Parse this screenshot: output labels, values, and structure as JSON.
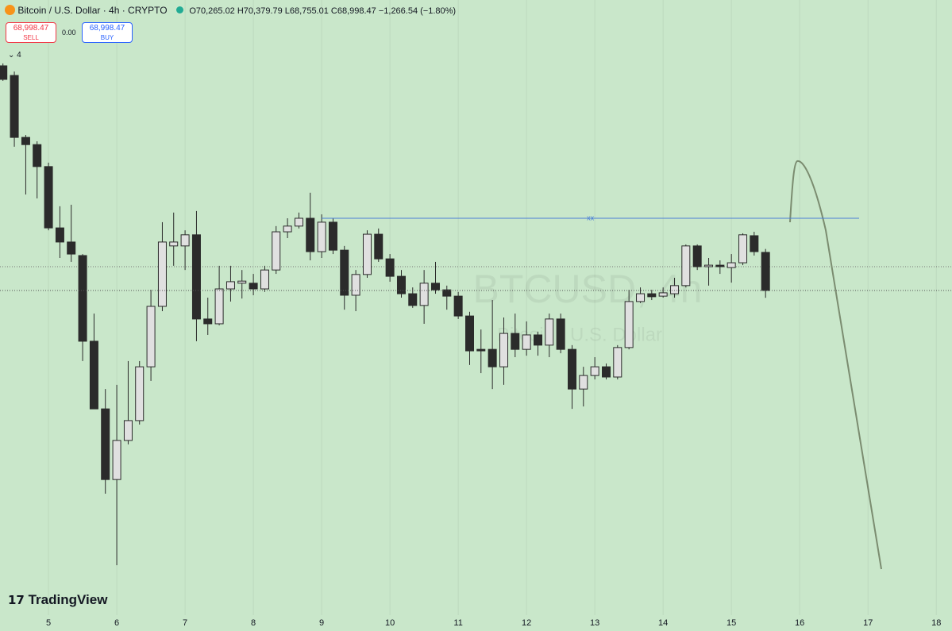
{
  "header": {
    "symbol": "Bitcoin / U.S. Dollar · 4h · CRYPTO",
    "ohlc": "O70,265.02 H70,379.79 L68,755.01 C68,998.47 −1,266.54 (−1.80%)",
    "sell_price": "68,998.47",
    "sell": "SELL",
    "spread": "0.00",
    "buy_price": "68,998.47",
    "buy": "BUY",
    "indicators": "4"
  },
  "watermark": {
    "ticker": "BTCUSD, 4h",
    "name": "Bitcoin / U.S. Dollar"
  },
  "logo": "TradingView",
  "chart_data": {
    "type": "candlestick",
    "x": [
      4.333,
      4.5,
      4.667,
      4.833,
      5,
      5.167,
      5.333,
      5.5,
      5.667,
      5.833,
      6,
      6.167,
      6.333,
      6.5,
      6.667,
      6.833,
      7,
      7.167,
      7.333,
      7.5,
      7.667,
      7.833,
      8,
      8.167,
      8.333,
      8.5,
      8.667,
      8.833,
      9,
      9.167,
      9.333,
      9.5,
      9.667,
      9.833,
      10,
      10.167,
      10.333,
      10.5,
      10.667,
      10.833,
      11,
      11.167,
      11.333,
      11.5,
      11.667,
      11.833,
      12,
      12.167,
      12.333,
      12.5,
      12.667,
      12.833,
      13,
      13.167,
      13.333,
      13.5,
      13.667,
      13.833,
      14,
      14.167,
      14.333,
      14.5,
      14.667,
      14.833,
      15,
      15.167,
      15.333,
      15.5
    ],
    "open": [
      76470,
      76150,
      74090,
      73850,
      73120,
      71080,
      70610,
      70160,
      67310,
      65060,
      62710,
      64010,
      64670,
      66460,
      68470,
      70480,
      70480,
      70850,
      68050,
      67890,
      69050,
      69240,
      69240,
      69050,
      69680,
      70950,
      71140,
      71400,
      70290,
      71270,
      70340,
      68840,
      69530,
      70870,
      70050,
      69470,
      68890,
      68500,
      69240,
      69020,
      68810,
      68150,
      67040,
      67040,
      66460,
      67570,
      67040,
      67520,
      67180,
      68050,
      67040,
      65720,
      66170,
      66460,
      66120,
      67100,
      68630,
      68890,
      68810,
      68890,
      69160,
      70480,
      69790,
      69840,
      69760,
      69920,
      70820,
      70265.02
    ],
    "high": [
      76550,
      76280,
      74170,
      73960,
      73250,
      71800,
      71850,
      70210,
      68230,
      65720,
      65860,
      66650,
      66650,
      69020,
      71270,
      71590,
      71000,
      71640,
      68760,
      69820,
      69820,
      69680,
      69550,
      69820,
      71140,
      71400,
      71590,
      72250,
      71530,
      71400,
      70480,
      69680,
      71000,
      71060,
      70210,
      69680,
      69100,
      69680,
      69950,
      69160,
      68950,
      68290,
      67700,
      68680,
      68100,
      68230,
      67970,
      67630,
      68230,
      68230,
      67180,
      66460,
      66780,
      66570,
      67180,
      69020,
      69100,
      69020,
      69100,
      69420,
      70530,
      70530,
      70080,
      70000,
      70210,
      70900,
      70950,
      70379.79
    ],
    "low": [
      75970,
      73780,
      72190,
      72060,
      71000,
      70080,
      69950,
      66650,
      65060,
      62240,
      59860,
      63880,
      64540,
      65990,
      68310,
      69820,
      69680,
      67310,
      67520,
      67840,
      68630,
      68730,
      68840,
      68950,
      69550,
      70740,
      71060,
      70000,
      70080,
      70210,
      68360,
      68310,
      69420,
      69950,
      69290,
      68760,
      68420,
      67890,
      68890,
      68360,
      68050,
      66520,
      66250,
      65720,
      65860,
      66780,
      66830,
      66830,
      66780,
      66910,
      65060,
      65140,
      66040,
      66040,
      66040,
      67040,
      68580,
      68680,
      68760,
      68760,
      69100,
      69680,
      69160,
      69550,
      69260,
      69840,
      70160,
      68755.01
    ],
    "close": [
      76020,
      74090,
      73850,
      73120,
      71080,
      70610,
      70210,
      67310,
      65060,
      62710,
      64010,
      64670,
      66460,
      68470,
      70610,
      70610,
      70850,
      68050,
      67890,
      69050,
      69290,
      69310,
      69050,
      69680,
      70950,
      71140,
      71400,
      70290,
      71270,
      70340,
      68840,
      69530,
      70870,
      70050,
      69470,
      68890,
      68500,
      69240,
      69020,
      68810,
      68150,
      66990,
      66990,
      66460,
      67570,
      67040,
      67520,
      67180,
      68050,
      67040,
      65720,
      66170,
      66460,
      66120,
      67100,
      68630,
      68890,
      68790,
      68920,
      69160,
      70480,
      69790,
      69840,
      69790,
      69920,
      70850,
      70290,
      68998.47
    ],
    "up_color": "#e0e0e0",
    "down_color": "#2b2b2b",
    "hline": {
      "value": 71400,
      "x": [
        9,
        16.87
      ],
      "label": "xx",
      "color": "#4a7fd6"
    },
    "xlim": [
      4.29,
      18.23
    ],
    "ylim": [
      58200,
      78660
    ],
    "xticks": [
      5,
      6,
      7,
      8,
      9,
      10,
      11,
      12,
      13,
      14,
      15,
      16,
      17,
      18
    ],
    "grid": true
  }
}
